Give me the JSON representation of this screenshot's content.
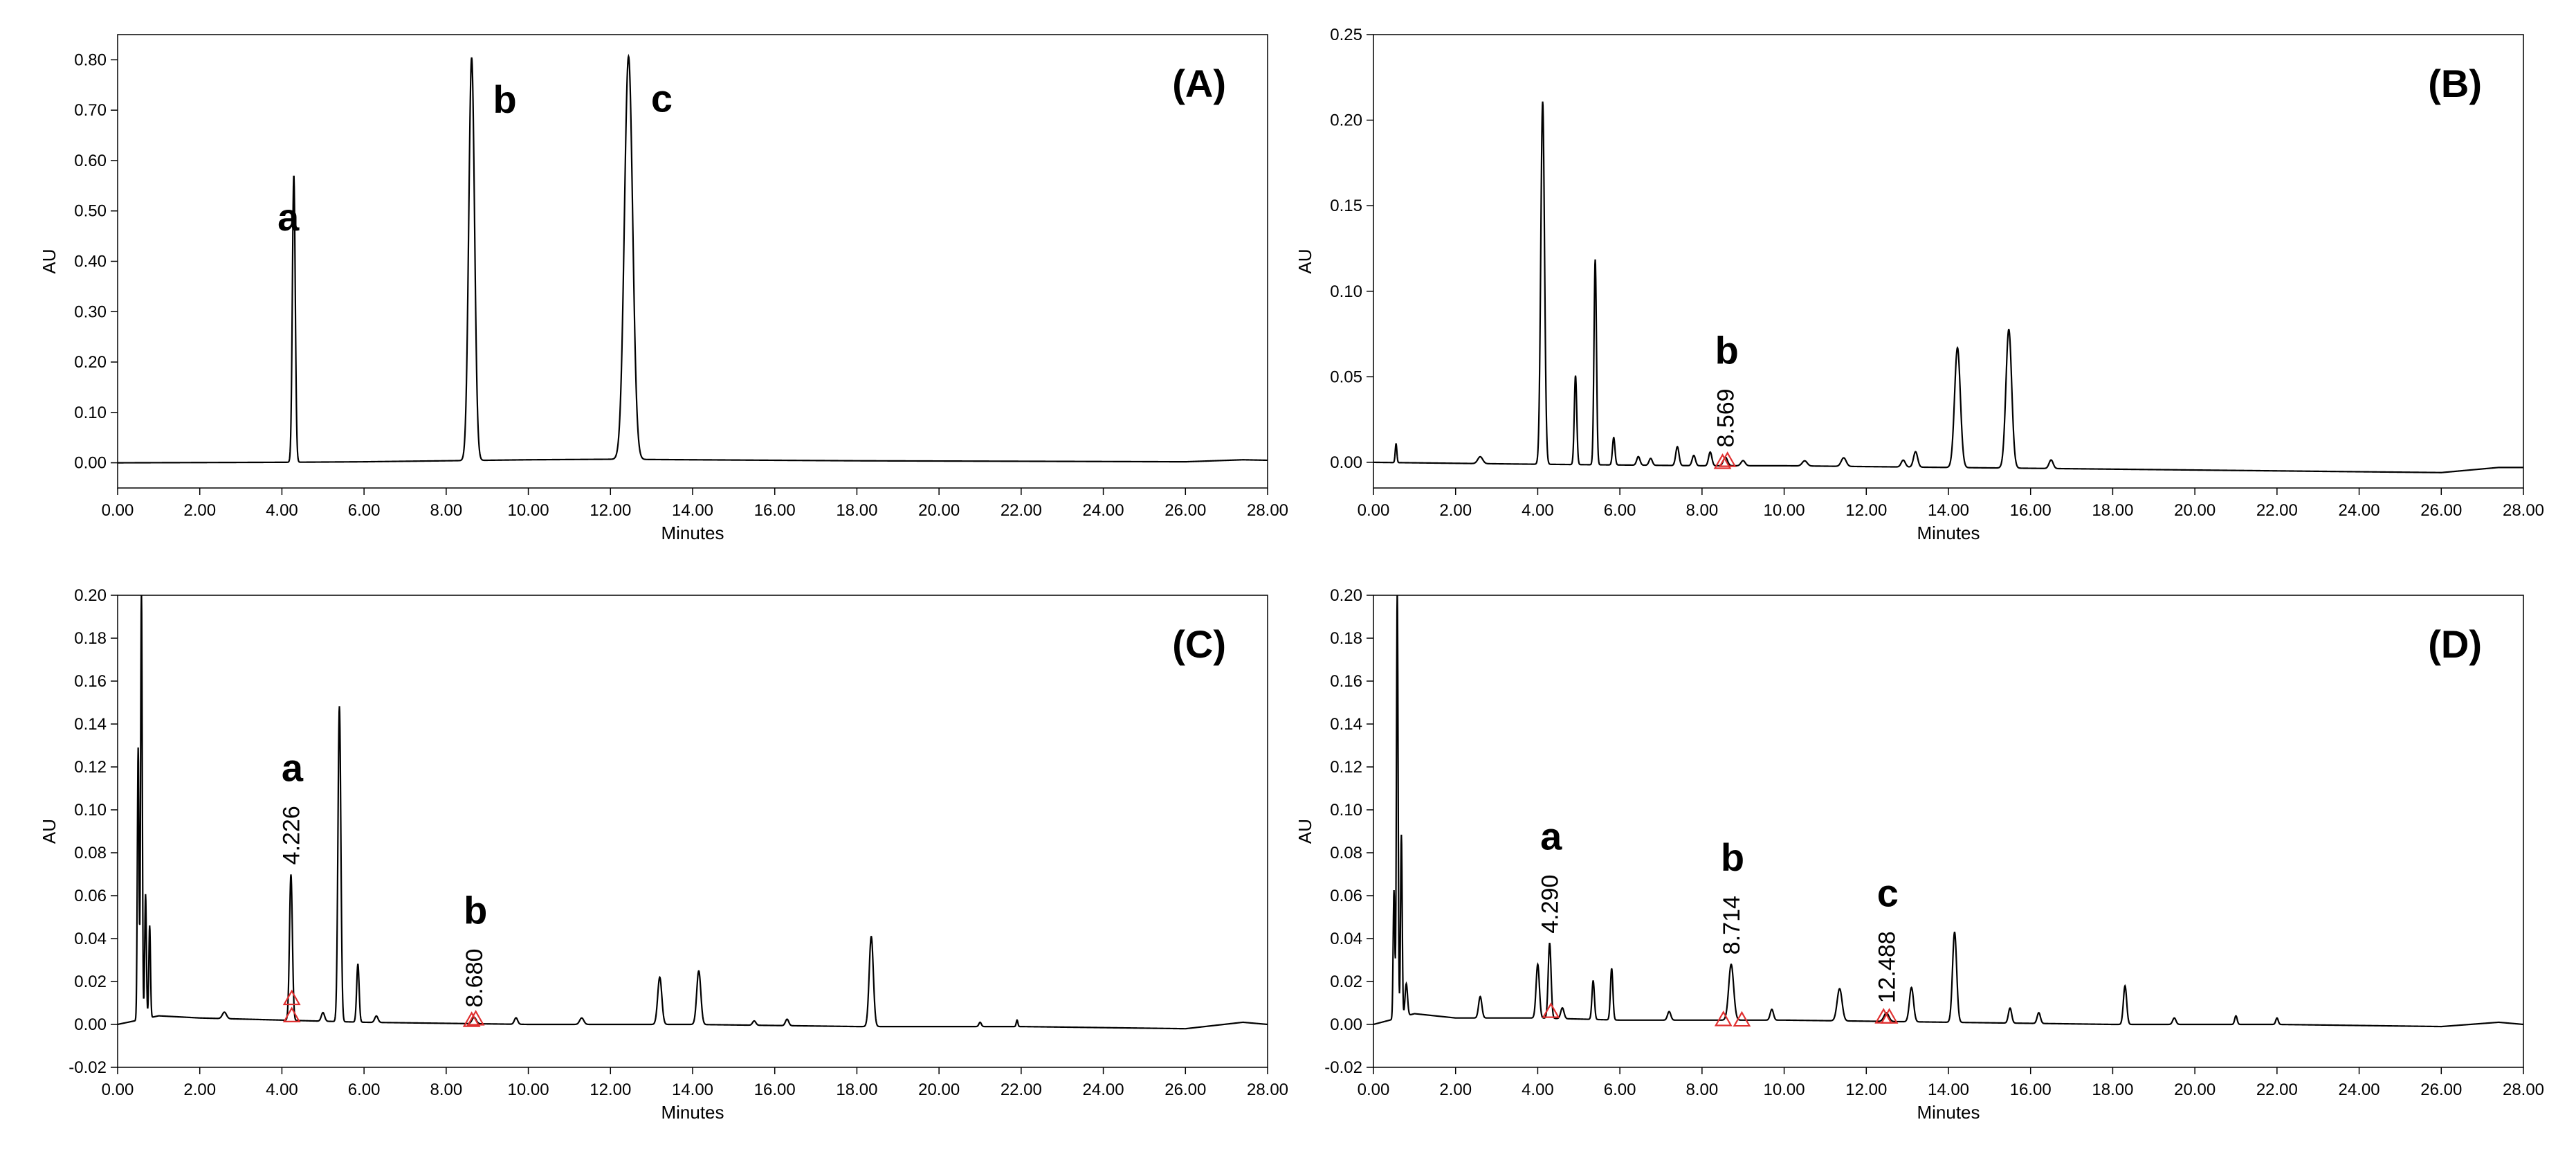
{
  "chart_data": [
    {
      "type": "line",
      "panel_label": "(A)",
      "xlabel": "Minutes",
      "ylabel": "AU",
      "xlim": [
        0,
        28
      ],
      "ylim": [
        -0.05,
        0.85
      ],
      "xticks": [
        0,
        2,
        4,
        6,
        8,
        10,
        12,
        14,
        16,
        18,
        20,
        22,
        24,
        26,
        28
      ],
      "yticks": [
        0,
        0.1,
        0.2,
        0.3,
        0.4,
        0.5,
        0.6,
        0.7,
        0.8
      ],
      "x_decimals": 2,
      "y_decimals": 2,
      "grid": false,
      "baseline": [
        [
          0,
          0
        ],
        [
          4,
          0.001
        ],
        [
          6,
          0.002
        ],
        [
          8,
          0.004
        ],
        [
          10,
          0.006
        ],
        [
          12,
          0.007
        ],
        [
          14,
          0.006
        ],
        [
          18,
          0.004
        ],
        [
          22,
          0.003
        ],
        [
          26,
          0.002
        ],
        [
          27.4,
          0.006
        ],
        [
          28,
          0.005
        ]
      ],
      "peaks": [
        {
          "rt": 4.29,
          "height": 0.57,
          "width": 0.035
        },
        {
          "rt": 8.62,
          "height": 0.8,
          "width": 0.07
        },
        {
          "rt": 12.44,
          "height": 0.8,
          "width": 0.1
        }
      ],
      "peak_labels": [
        {
          "text": "a",
          "rt": 4.29
        },
        {
          "text": "b",
          "rt": 8.62
        },
        {
          "text": "c",
          "rt": 12.44
        }
      ],
      "rt_labels": [],
      "markers": []
    },
    {
      "type": "line",
      "panel_label": "(B)",
      "xlabel": "Minutes",
      "ylabel": "AU",
      "xlim": [
        0,
        28
      ],
      "ylim": [
        -0.015,
        0.25
      ],
      "xticks": [
        0,
        2,
        4,
        6,
        8,
        10,
        12,
        14,
        16,
        18,
        20,
        22,
        24,
        26,
        28
      ],
      "yticks": [
        0,
        0.05,
        0.1,
        0.15,
        0.2,
        0.25
      ],
      "x_decimals": 2,
      "y_decimals": 2,
      "grid": false,
      "baseline": [
        [
          0,
          0
        ],
        [
          3.5,
          -0.001
        ],
        [
          8,
          -0.002
        ],
        [
          10,
          -0.002
        ],
        [
          14,
          -0.003
        ],
        [
          18,
          -0.004
        ],
        [
          22,
          -0.005
        ],
        [
          26,
          -0.006
        ],
        [
          27.4,
          -0.003
        ],
        [
          28,
          -0.003
        ]
      ],
      "peaks": [
        {
          "rt": 0.55,
          "height": 0.011,
          "width": 0.02
        },
        {
          "rt": 2.6,
          "height": 0.004,
          "width": 0.06
        },
        {
          "rt": 4.12,
          "height": 0.212,
          "width": 0.045
        },
        {
          "rt": 4.92,
          "height": 0.052,
          "width": 0.03
        },
        {
          "rt": 5.4,
          "height": 0.12,
          "width": 0.03
        },
        {
          "rt": 5.85,
          "height": 0.016,
          "width": 0.03
        },
        {
          "rt": 6.45,
          "height": 0.005,
          "width": 0.04
        },
        {
          "rt": 6.75,
          "height": 0.004,
          "width": 0.04
        },
        {
          "rt": 7.4,
          "height": 0.011,
          "width": 0.04
        },
        {
          "rt": 7.8,
          "height": 0.006,
          "width": 0.04
        },
        {
          "rt": 8.2,
          "height": 0.008,
          "width": 0.04
        },
        {
          "rt": 8.57,
          "height": 0.005,
          "width": 0.05
        },
        {
          "rt": 9.0,
          "height": 0.003,
          "width": 0.05
        },
        {
          "rt": 10.5,
          "height": 0.003,
          "width": 0.06
        },
        {
          "rt": 11.45,
          "height": 0.005,
          "width": 0.06
        },
        {
          "rt": 12.9,
          "height": 0.004,
          "width": 0.05
        },
        {
          "rt": 13.2,
          "height": 0.009,
          "width": 0.05
        },
        {
          "rt": 14.22,
          "height": 0.07,
          "width": 0.07
        },
        {
          "rt": 15.47,
          "height": 0.081,
          "width": 0.07
        },
        {
          "rt": 16.5,
          "height": 0.005,
          "width": 0.05
        }
      ],
      "peak_labels": [
        {
          "text": "b",
          "rt": 8.57
        }
      ],
      "rt_labels": [
        {
          "text": "8.569",
          "rt": 8.57
        }
      ],
      "markers": [
        {
          "rt": 8.5
        },
        {
          "rt": 8.62
        }
      ]
    },
    {
      "type": "line",
      "panel_label": "(C)",
      "xlabel": "Minutes",
      "ylabel": "AU",
      "xlim": [
        0,
        28
      ],
      "ylim": [
        -0.02,
        0.2
      ],
      "xticks": [
        0,
        2,
        4,
        6,
        8,
        10,
        12,
        14,
        16,
        18,
        20,
        22,
        24,
        26,
        28
      ],
      "yticks": [
        -0.02,
        0,
        0.02,
        0.04,
        0.06,
        0.08,
        0.1,
        0.12,
        0.14,
        0.16,
        0.18,
        0.2
      ],
      "x_decimals": 2,
      "y_decimals": 2,
      "grid": false,
      "baseline": [
        [
          0,
          0
        ],
        [
          1,
          0.004
        ],
        [
          2,
          0.003
        ],
        [
          4,
          0.002
        ],
        [
          6,
          0.001
        ],
        [
          10,
          0
        ],
        [
          14,
          0
        ],
        [
          18,
          -0.001
        ],
        [
          22,
          -0.001
        ],
        [
          26,
          -0.002
        ],
        [
          27.4,
          0.001
        ],
        [
          28,
          0
        ]
      ],
      "peaks": [
        {
          "rt": 0.5,
          "height": 0.127,
          "width": 0.02
        },
        {
          "rt": 0.58,
          "height": 0.2,
          "width": 0.02
        },
        {
          "rt": 0.68,
          "height": 0.058,
          "width": 0.02
        },
        {
          "rt": 0.78,
          "height": 0.043,
          "width": 0.02
        },
        {
          "rt": 2.6,
          "height": 0.003,
          "width": 0.05
        },
        {
          "rt": 4.22,
          "height": 0.068,
          "width": 0.035
        },
        {
          "rt": 5.0,
          "height": 0.004,
          "width": 0.04
        },
        {
          "rt": 5.4,
          "height": 0.147,
          "width": 0.035
        },
        {
          "rt": 5.85,
          "height": 0.027,
          "width": 0.03
        },
        {
          "rt": 6.3,
          "height": 0.003,
          "width": 0.04
        },
        {
          "rt": 8.68,
          "height": 0.003,
          "width": 0.05
        },
        {
          "rt": 9.7,
          "height": 0.003,
          "width": 0.04
        },
        {
          "rt": 11.3,
          "height": 0.003,
          "width": 0.05
        },
        {
          "rt": 13.2,
          "height": 0.022,
          "width": 0.05
        },
        {
          "rt": 14.15,
          "height": 0.025,
          "width": 0.05
        },
        {
          "rt": 15.5,
          "height": 0.002,
          "width": 0.04
        },
        {
          "rt": 16.3,
          "height": 0.003,
          "width": 0.04
        },
        {
          "rt": 18.35,
          "height": 0.042,
          "width": 0.05
        },
        {
          "rt": 21.0,
          "height": 0.002,
          "width": 0.03
        },
        {
          "rt": 21.9,
          "height": 0.003,
          "width": 0.02
        }
      ],
      "peak_labels": [
        {
          "text": "a",
          "rt": 4.22
        },
        {
          "text": "b",
          "rt": 8.68
        }
      ],
      "rt_labels": [
        {
          "text": "4.226",
          "rt": 4.22
        },
        {
          "text": "8.680",
          "rt": 8.68
        }
      ],
      "markers": [
        {
          "rt": 4.24,
          "y": 0.012
        },
        {
          "rt": 4.24,
          "y": 0.004
        },
        {
          "rt": 8.62
        },
        {
          "rt": 8.72
        }
      ]
    },
    {
      "type": "line",
      "panel_label": "(D)",
      "xlabel": "Minutes",
      "ylabel": "AU",
      "xlim": [
        0,
        28
      ],
      "ylim": [
        -0.02,
        0.2
      ],
      "xticks": [
        0,
        2,
        4,
        6,
        8,
        10,
        12,
        14,
        16,
        18,
        20,
        22,
        24,
        26,
        28
      ],
      "yticks": [
        -0.02,
        0,
        0.02,
        0.04,
        0.06,
        0.08,
        0.1,
        0.12,
        0.14,
        0.16,
        0.18,
        0.2
      ],
      "x_decimals": 2,
      "y_decimals": 2,
      "grid": false,
      "baseline": [
        [
          0,
          0
        ],
        [
          1,
          0.005
        ],
        [
          2,
          0.003
        ],
        [
          4,
          0.003
        ],
        [
          6,
          0.002
        ],
        [
          10,
          0.002
        ],
        [
          14,
          0.001
        ],
        [
          18,
          0
        ],
        [
          22,
          0
        ],
        [
          26,
          -0.001
        ],
        [
          27.4,
          0.001
        ],
        [
          28,
          0
        ]
      ],
      "peaks": [
        {
          "rt": 0.5,
          "height": 0.06,
          "width": 0.02
        },
        {
          "rt": 0.58,
          "height": 0.2,
          "width": 0.02
        },
        {
          "rt": 0.68,
          "height": 0.085,
          "width": 0.02
        },
        {
          "rt": 0.8,
          "height": 0.015,
          "width": 0.03
        },
        {
          "rt": 2.6,
          "height": 0.01,
          "width": 0.04
        },
        {
          "rt": 4.0,
          "height": 0.025,
          "width": 0.04
        },
        {
          "rt": 4.29,
          "height": 0.035,
          "width": 0.035
        },
        {
          "rt": 4.6,
          "height": 0.005,
          "width": 0.04
        },
        {
          "rt": 5.35,
          "height": 0.018,
          "width": 0.03
        },
        {
          "rt": 5.8,
          "height": 0.024,
          "width": 0.03
        },
        {
          "rt": 7.2,
          "height": 0.004,
          "width": 0.04
        },
        {
          "rt": 8.71,
          "height": 0.026,
          "width": 0.06
        },
        {
          "rt": 9.7,
          "height": 0.005,
          "width": 0.04
        },
        {
          "rt": 11.35,
          "height": 0.015,
          "width": 0.06
        },
        {
          "rt": 12.49,
          "height": 0.004,
          "width": 0.06
        },
        {
          "rt": 13.1,
          "height": 0.016,
          "width": 0.05
        },
        {
          "rt": 14.15,
          "height": 0.042,
          "width": 0.05
        },
        {
          "rt": 15.5,
          "height": 0.007,
          "width": 0.04
        },
        {
          "rt": 16.2,
          "height": 0.005,
          "width": 0.04
        },
        {
          "rt": 18.3,
          "height": 0.018,
          "width": 0.04
        },
        {
          "rt": 19.5,
          "height": 0.003,
          "width": 0.04
        },
        {
          "rt": 21.0,
          "height": 0.004,
          "width": 0.03
        },
        {
          "rt": 22.0,
          "height": 0.003,
          "width": 0.03
        }
      ],
      "peak_labels": [
        {
          "text": "a",
          "rt": 4.29
        },
        {
          "text": "b",
          "rt": 8.71
        },
        {
          "text": "c",
          "rt": 12.49
        }
      ],
      "rt_labels": [
        {
          "text": "4.290",
          "rt": 4.29
        },
        {
          "text": "8.714",
          "rt": 8.71
        },
        {
          "text": "12.488",
          "rt": 12.49
        }
      ],
      "markers": [
        {
          "rt": 4.32,
          "y": 0.006
        },
        {
          "rt": 8.52
        },
        {
          "rt": 8.97
        },
        {
          "rt": 12.42
        },
        {
          "rt": 12.56
        }
      ]
    }
  ]
}
